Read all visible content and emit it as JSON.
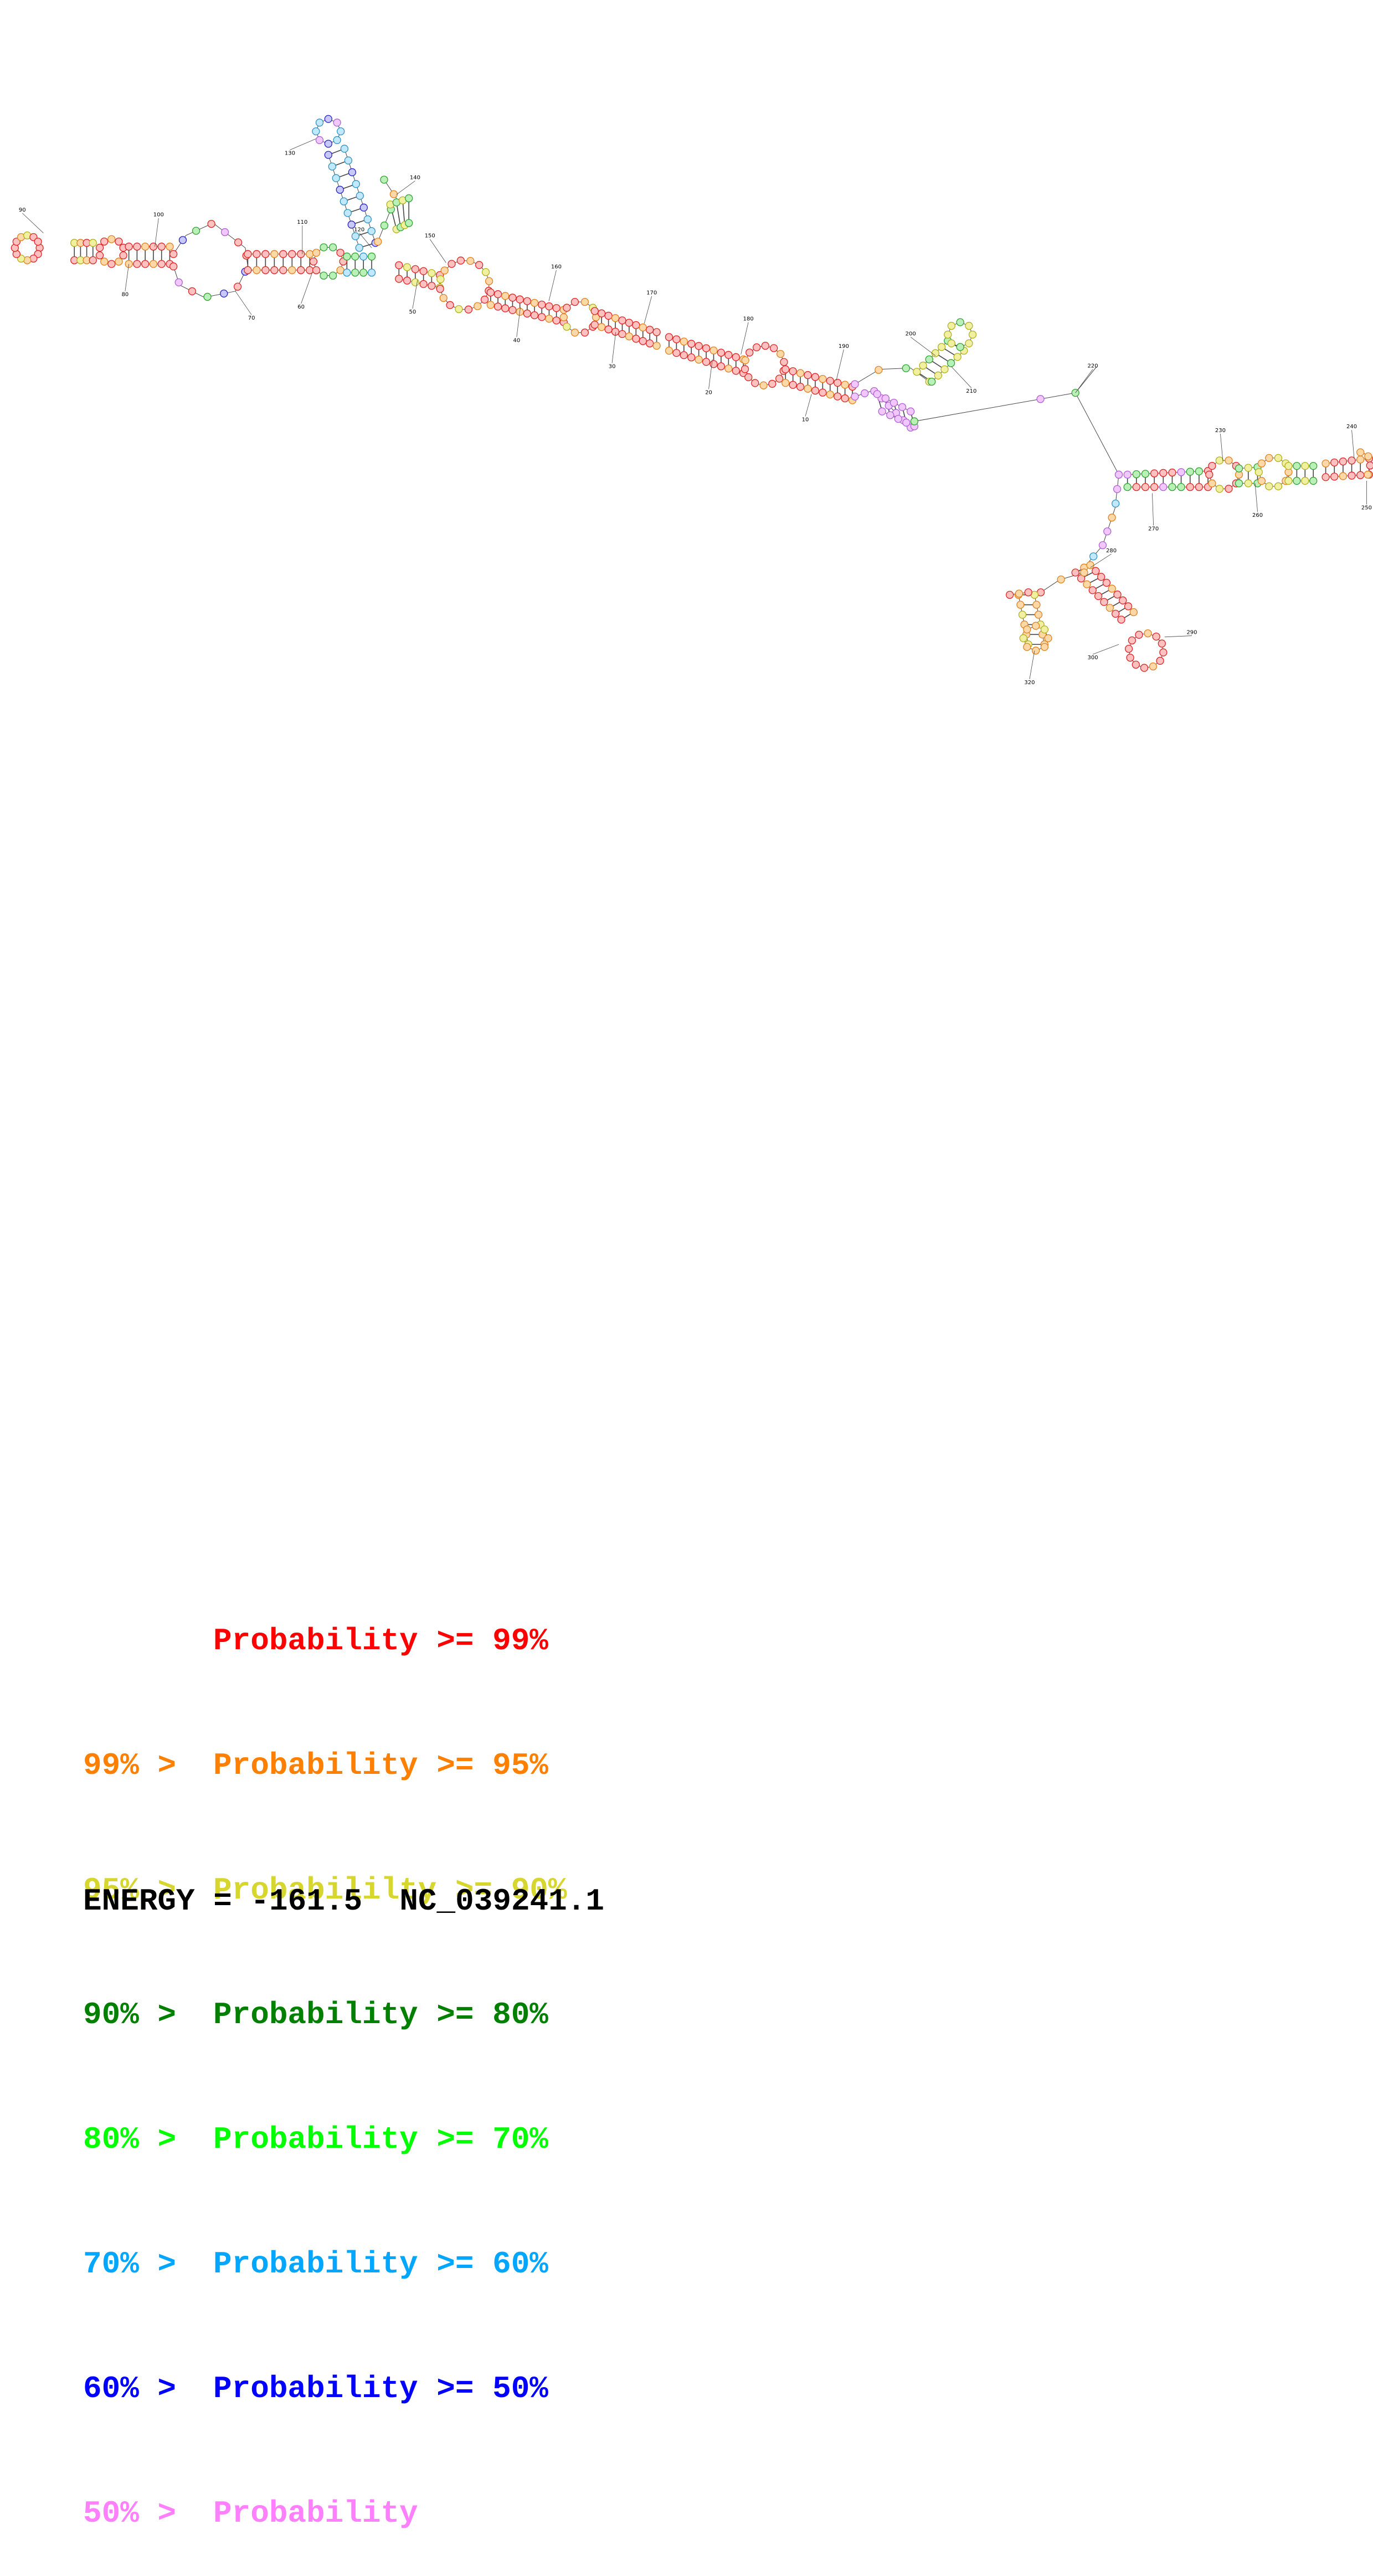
{
  "diagram": {
    "tick_labels": [
      "10",
      "20",
      "30",
      "40",
      "50",
      "60",
      "70",
      "80",
      "90",
      "100",
      "110",
      "120",
      "130",
      "140",
      "150",
      "160",
      "170",
      "180",
      "190",
      "200",
      "210",
      "220",
      "230",
      "240",
      "250",
      "260",
      "270",
      "280",
      "290",
      "300",
      "320"
    ]
  },
  "legend": {
    "rows": [
      {
        "prefix": "",
        "label": "Probability >= 99%",
        "color": "#ff0000"
      },
      {
        "prefix": "99% > ",
        "label": "Probability >= 95%",
        "color": "#ff8000"
      },
      {
        "prefix": "95% > ",
        "label": "Probabililty >= 90%",
        "color": "#d6d62e"
      },
      {
        "prefix": "90% > ",
        "label": "Probability >= 80%",
        "color": "#008000"
      },
      {
        "prefix": "80% > ",
        "label": "Probability >= 70%",
        "color": "#00ff00"
      },
      {
        "prefix": "70% > ",
        "label": "Probability >= 60%",
        "color": "#00a6ff"
      },
      {
        "prefix": "60% > ",
        "label": "Probability >= 50%",
        "color": "#0000ff"
      },
      {
        "prefix": "50% > ",
        "label": "Probability",
        "color": "#ff80ff"
      }
    ]
  },
  "footer": {
    "energy_label": "ENERGY = -161.5",
    "sequence_id": "NC_039241.1"
  }
}
